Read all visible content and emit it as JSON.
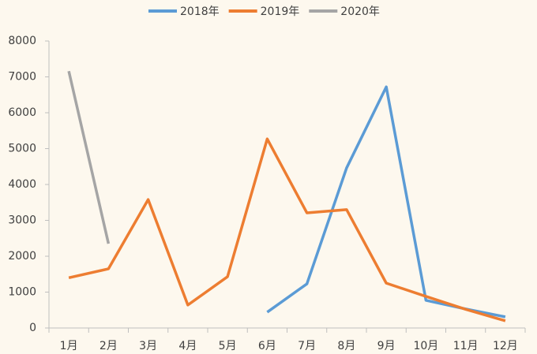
{
  "chart_data": {
    "type": "line",
    "categories": [
      "1月",
      "2月",
      "3月",
      "4月",
      "5月",
      "6月",
      "7月",
      "8月",
      "9月",
      "10月",
      "11月",
      "12月"
    ],
    "series": [
      {
        "name": "2018年",
        "color": "#5b9bd5",
        "values": [
          null,
          null,
          null,
          null,
          null,
          440,
          1230,
          4460,
          6720,
          770,
          530,
          310
        ]
      },
      {
        "name": "2019年",
        "color": "#ed7d31",
        "values": [
          1400,
          1650,
          3580,
          640,
          1430,
          5270,
          3210,
          3300,
          1250,
          880,
          520,
          200
        ]
      },
      {
        "name": "2020年",
        "color": "#a5a5a5",
        "values": [
          7160,
          2350,
          null,
          null,
          null,
          null,
          null,
          null,
          null,
          null,
          null,
          null
        ]
      }
    ],
    "ylim": [
      0,
      8000
    ],
    "yticks": [
      0,
      1000,
      2000,
      3000,
      4000,
      5000,
      6000,
      7000,
      8000
    ],
    "grid": false,
    "legend": "top"
  }
}
